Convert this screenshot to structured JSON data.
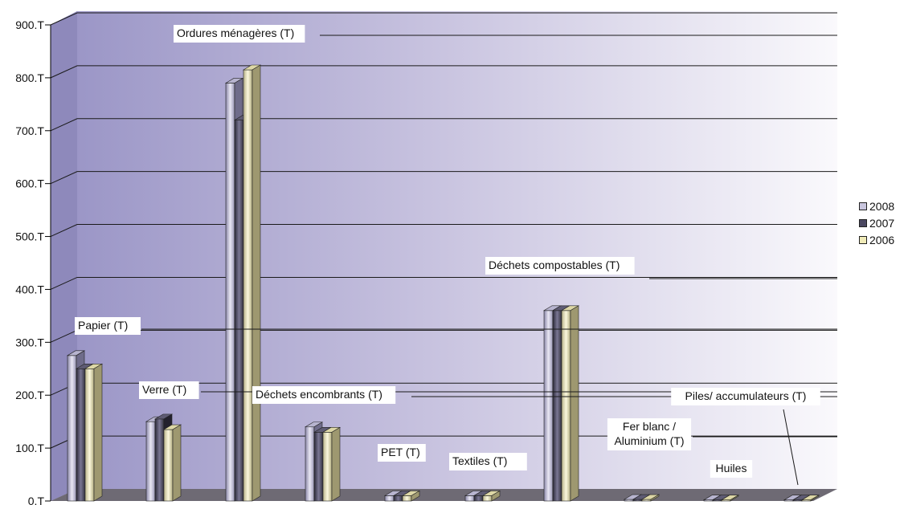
{
  "chart_data": {
    "type": "bar",
    "ylim": [
      0,
      900
    ],
    "y_ticks": [
      "0.T",
      "100.T",
      "200.T",
      "300.T",
      "400.T",
      "500.T",
      "600.T",
      "700.T",
      "800.T",
      "900.T"
    ],
    "categories": [
      "Papier (T)",
      "Verre (T)",
      "Ordures ménagères (T)",
      "Déchets encombrants (T)",
      "PET (T)",
      "Textiles (T)",
      "Déchets compostables (T)",
      "Fer blanc / Aluminium (T)",
      "Huiles",
      "Piles/ accumulateurs (T)"
    ],
    "series": [
      {
        "name": "2008",
        "values": [
          275,
          150,
          790,
          140,
          10,
          10,
          360,
          3,
          2,
          2
        ]
      },
      {
        "name": "2007",
        "values": [
          250,
          155,
          720,
          130,
          10,
          10,
          360,
          3,
          2,
          2
        ]
      },
      {
        "name": "2006",
        "values": [
          250,
          135,
          815,
          130,
          10,
          10,
          360,
          3,
          2,
          2
        ]
      }
    ],
    "colors": {
      "2008": "#c9c6de",
      "2007": "#4a4760",
      "2006": "#f0ebb8",
      "floor": "#6e6a74",
      "wall_left": "#9c97c6",
      "wall_right": "#f4f1f8"
    },
    "grid": true,
    "legend_position": "right"
  }
}
